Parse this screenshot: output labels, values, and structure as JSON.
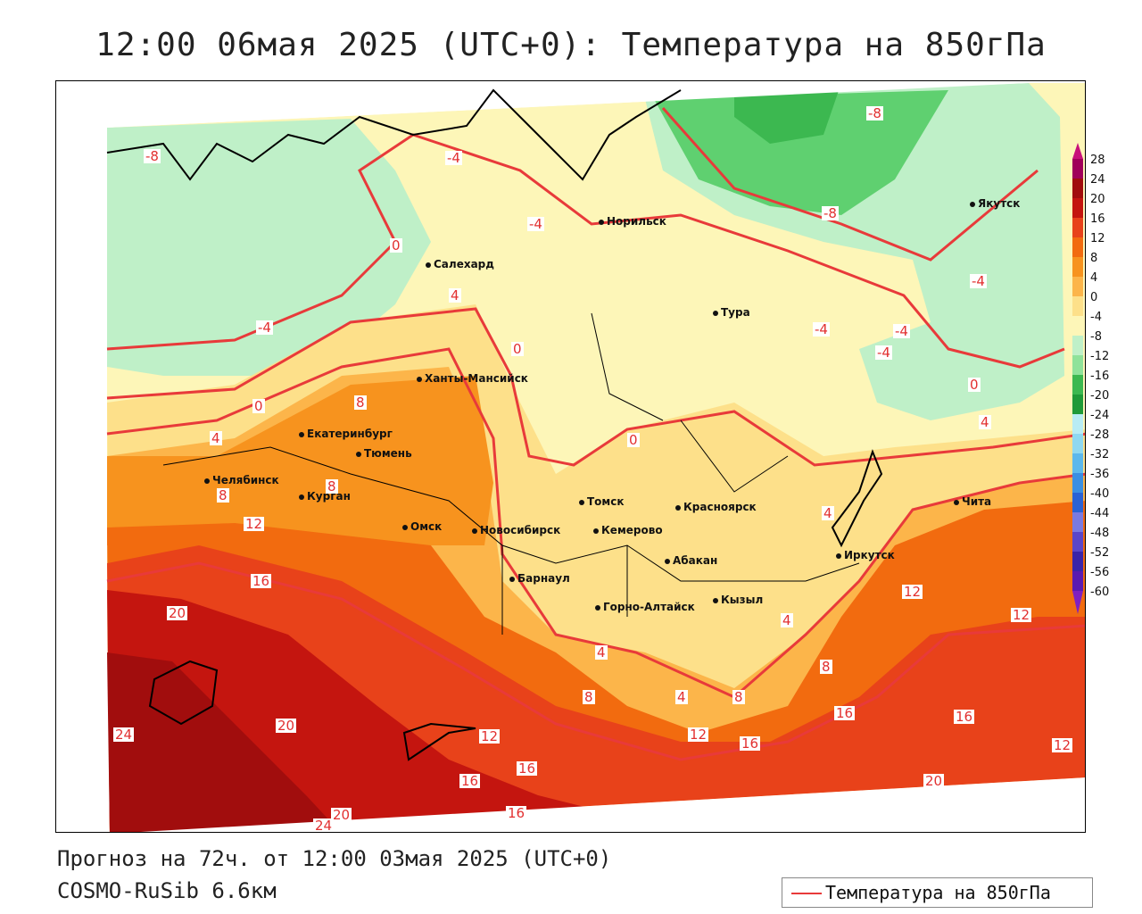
{
  "title": "12:00 06мая 2025 (UTC+0): Температура на 850гПа",
  "footer": {
    "forecast": "Прогноз на 72ч. от 12:00 03мая 2025 (UTC+0)",
    "model": "COSMO-RuSib 6.6км"
  },
  "legend": {
    "label": "Температура на 850гПа",
    "line_color": "#e83a3a"
  },
  "colorbar": {
    "labels": [
      "28",
      "24",
      "20",
      "16",
      "12",
      "8",
      "4",
      "0",
      "-4",
      "-8",
      "-12",
      "-16",
      "-20",
      "-24",
      "-28",
      "-32",
      "-36",
      "-40",
      "-44",
      "-48",
      "-52",
      "-56",
      "-60"
    ]
  },
  "cities": [
    {
      "name": "Норильск"
    },
    {
      "name": "Якутск"
    },
    {
      "name": "Салехард"
    },
    {
      "name": "Тура"
    },
    {
      "name": "Ханты-Мансийск"
    },
    {
      "name": "Екатеринбург"
    },
    {
      "name": "Тюмень"
    },
    {
      "name": "Челябинск"
    },
    {
      "name": "Курган"
    },
    {
      "name": "Омск"
    },
    {
      "name": "Новосибирск"
    },
    {
      "name": "Томск"
    },
    {
      "name": "Кемерово"
    },
    {
      "name": "Красноярск"
    },
    {
      "name": "Абакан"
    },
    {
      "name": "Барнаул"
    },
    {
      "name": "Горно-Алтайск"
    },
    {
      "name": "Кызыл"
    },
    {
      "name": "Иркутск"
    },
    {
      "name": "Чита"
    }
  ],
  "isolabels": [
    "-8",
    "-4",
    "-4",
    "-8",
    "-8",
    "-4",
    "-4",
    "-4",
    "0",
    "4",
    "0",
    "8",
    "0",
    "4",
    "8",
    "8",
    "12",
    "16",
    "20",
    "24",
    "20",
    "24",
    "12",
    "16",
    "16",
    "16",
    "20",
    "4",
    "0",
    "4",
    "8",
    "12",
    "16",
    "16",
    "8",
    "4",
    "8",
    "4",
    "12",
    "12",
    "16",
    "20",
    "12",
    "-4",
    "-4",
    "0",
    "4"
  ]
}
